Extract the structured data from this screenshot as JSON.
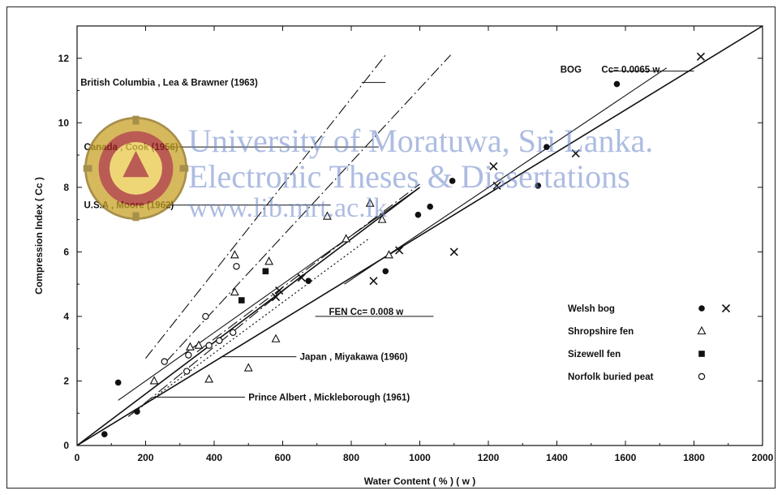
{
  "chart_data": {
    "type": "scatter",
    "xlabel": "Water Content ( % ) ( w )",
    "ylabel": "Compression Index ( Cc )",
    "xlim": [
      0,
      2000
    ],
    "ylim": [
      0,
      13
    ],
    "xticks": [
      0,
      200,
      400,
      600,
      800,
      1000,
      1200,
      1400,
      1600,
      1800,
      2000
    ],
    "yticks": [
      0,
      2,
      4,
      6,
      8,
      10,
      12
    ],
    "grid": false,
    "legend_position": "right",
    "series": [
      {
        "name": "Welsh bog",
        "marker": "filled-circle",
        "points": [
          [
            80,
            0.35
          ],
          [
            120,
            1.95
          ],
          [
            175,
            1.05
          ],
          [
            675,
            5.1
          ],
          [
            900,
            5.4
          ],
          [
            995,
            7.15
          ],
          [
            1030,
            7.4
          ],
          [
            1095,
            8.2
          ],
          [
            1345,
            8.05
          ],
          [
            1370,
            9.25
          ],
          [
            1575,
            11.2
          ]
        ]
      },
      {
        "name": "Welsh bog",
        "marker": "cross",
        "points": [
          [
            865,
            5.1
          ],
          [
            940,
            6.05
          ],
          [
            1100,
            6.0
          ],
          [
            1215,
            8.65
          ],
          [
            1225,
            8.05
          ],
          [
            1455,
            9.05
          ],
          [
            1820,
            12.05
          ],
          [
            590,
            4.8
          ],
          [
            580,
            4.6
          ],
          [
            655,
            5.2
          ]
        ]
      },
      {
        "name": "Shropshire fen",
        "marker": "triangle",
        "points": [
          [
            225,
            2.0
          ],
          [
            330,
            3.05
          ],
          [
            355,
            3.1
          ],
          [
            385,
            2.05
          ],
          [
            460,
            4.75
          ],
          [
            460,
            5.9
          ],
          [
            500,
            2.4
          ],
          [
            560,
            5.7
          ],
          [
            580,
            3.3
          ],
          [
            730,
            7.1
          ],
          [
            785,
            6.4
          ],
          [
            855,
            7.5
          ],
          [
            890,
            7.0
          ],
          [
            910,
            5.9
          ]
        ]
      },
      {
        "name": "Sizewell fen",
        "marker": "filled-square",
        "points": [
          [
            480,
            4.5
          ],
          [
            550,
            5.4
          ]
        ]
      },
      {
        "name": "Norfolk buried peat",
        "marker": "open-circle",
        "points": [
          [
            255,
            2.6
          ],
          [
            320,
            2.3
          ],
          [
            325,
            2.8
          ],
          [
            375,
            4.0
          ],
          [
            385,
            3.1
          ],
          [
            415,
            3.25
          ],
          [
            455,
            3.5
          ],
          [
            465,
            5.55
          ]
        ]
      }
    ],
    "lines": [
      {
        "label": "BOG Cc= 0.0065 w",
        "x": [
          0,
          2000
        ],
        "y": [
          0,
          13.0
        ],
        "style": "solid",
        "width": 1.6
      },
      {
        "label": "FEN Cc= 0.008 w",
        "x": [
          0,
          1000
        ],
        "y": [
          0,
          8.0
        ],
        "style": "solid",
        "width": 1.6
      },
      {
        "label": "",
        "x": [
          120,
          1000
        ],
        "y": [
          1.4,
          8.0
        ],
        "style": "solid",
        "width": 1.1
      },
      {
        "label": "",
        "x": [
          780,
          1720
        ],
        "y": [
          5.0,
          11.7
        ],
        "style": "solid",
        "width": 1.1
      },
      {
        "label": "Japan , Miyakawa (1960)",
        "x": [
          150,
          850
        ],
        "y": [
          0.9,
          6.4
        ],
        "style": "dotted",
        "width": 1.2
      },
      {
        "label": "Prince Albert , Mickleborough (1961)",
        "x": [
          150,
          660
        ],
        "y": [
          0.9,
          5.3
        ],
        "style": "dash-dot",
        "width": 1.1
      },
      {
        "label": "British Columbia , Lea & Brawner (1963)",
        "x": [
          200,
          900
        ],
        "y": [
          2.7,
          12.1
        ],
        "style": "dash-dot",
        "width": 1.1
      },
      {
        "label": "Canada , Cook (1956)",
        "x": [
          260,
          1090
        ],
        "y": [
          2.6,
          12.1
        ],
        "style": "dash-dot",
        "width": 1.1
      },
      {
        "label": "U.S.A , Moore (1962)",
        "x": [
          350,
          1000
        ],
        "y": [
          2.9,
          8.1
        ],
        "style": "dash-dot",
        "width": 1.1
      }
    ],
    "annotations": [
      {
        "text": "BOG",
        "at": [
          1410,
          11.65
        ]
      },
      {
        "text": "Cc= 0.0065 w",
        "at": [
          1530,
          11.65
        ]
      },
      {
        "text": "FEN  Cc= 0.008 w",
        "at": [
          735,
          4.15
        ]
      },
      {
        "text": "British Columbia , Lea & Brawner  (1963)",
        "at": [
          10,
          11.25
        ]
      },
      {
        "text": "Canada , Cook  (1956)",
        "at": [
          20,
          9.25
        ]
      },
      {
        "text": "U.S.A , Moore  (1962)",
        "at": [
          20,
          7.45
        ]
      },
      {
        "text": "Japan , Miyakawa  (1960)",
        "at": [
          650,
          2.75
        ]
      },
      {
        "text": "Prince Albert , Mickleborough  (1961)",
        "at": [
          500,
          1.5
        ]
      }
    ],
    "legend": [
      {
        "label": "Welsh bog",
        "markers": [
          "filled-circle",
          "cross"
        ]
      },
      {
        "label": "Shropshire fen",
        "markers": [
          "triangle"
        ]
      },
      {
        "label": "Sizewell fen",
        "markers": [
          "filled-square"
        ]
      },
      {
        "label": "Norfolk buried peat",
        "markers": [
          "open-circle"
        ]
      }
    ]
  },
  "watermark": {
    "line1": "University of Moratuwa, Sri Lanka.",
    "line2": "Electronic Theses & Dissertations",
    "line3": "www.lib.mrt.ac.lk"
  },
  "colors": {
    "ink": "#111111",
    "watermark": "#6b86c9",
    "seal_gold": "#c9a227",
    "seal_red": "#a3261c"
  }
}
